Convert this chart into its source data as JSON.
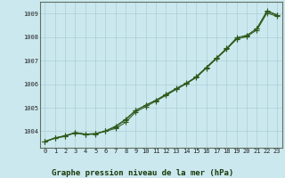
{
  "title": "Graphe pression niveau de la mer (hPa)",
  "x_labels": [
    0,
    1,
    2,
    3,
    4,
    5,
    6,
    7,
    8,
    9,
    10,
    11,
    12,
    13,
    14,
    15,
    16,
    17,
    18,
    19,
    20,
    21,
    22,
    23
  ],
  "line1": [
    1003.55,
    1003.72,
    1003.8,
    1003.92,
    1003.85,
    1003.88,
    1004.0,
    1004.12,
    1004.38,
    1004.82,
    1005.05,
    1005.28,
    1005.52,
    1005.78,
    1006.02,
    1006.28,
    1006.68,
    1007.08,
    1007.48,
    1007.92,
    1008.02,
    1008.3,
    1009.02,
    1008.88
  ],
  "line2": [
    1003.55,
    1003.7,
    1003.78,
    1003.95,
    1003.88,
    1003.9,
    1004.0,
    1004.18,
    1004.48,
    1004.88,
    1005.12,
    1005.32,
    1005.58,
    1005.82,
    1006.05,
    1006.32,
    1006.72,
    1007.12,
    1007.52,
    1007.98,
    1008.08,
    1008.35,
    1009.08,
    1008.92
  ],
  "line3": [
    1003.58,
    1003.72,
    1003.82,
    1003.95,
    1003.88,
    1003.9,
    1004.02,
    1004.22,
    1004.52,
    1004.9,
    1005.1,
    1005.32,
    1005.55,
    1005.78,
    1006.02,
    1006.32,
    1006.72,
    1007.12,
    1007.52,
    1007.92,
    1008.05,
    1008.38,
    1009.12,
    1008.95
  ],
  "ylim_min": 1003.3,
  "ylim_max": 1009.5,
  "yticks": [
    1004,
    1005,
    1006,
    1007,
    1008,
    1009
  ],
  "bg_color": "#cce8ef",
  "line_color": "#2d5a1b",
  "grid_color": "#aacdd4",
  "axis_color": "#607060",
  "title_fontsize": 6.5,
  "marker": "+",
  "markersize": 4.0,
  "linewidth": 0.7,
  "tick_fontsize": 5.0,
  "ytick_fontsize": 5.0
}
